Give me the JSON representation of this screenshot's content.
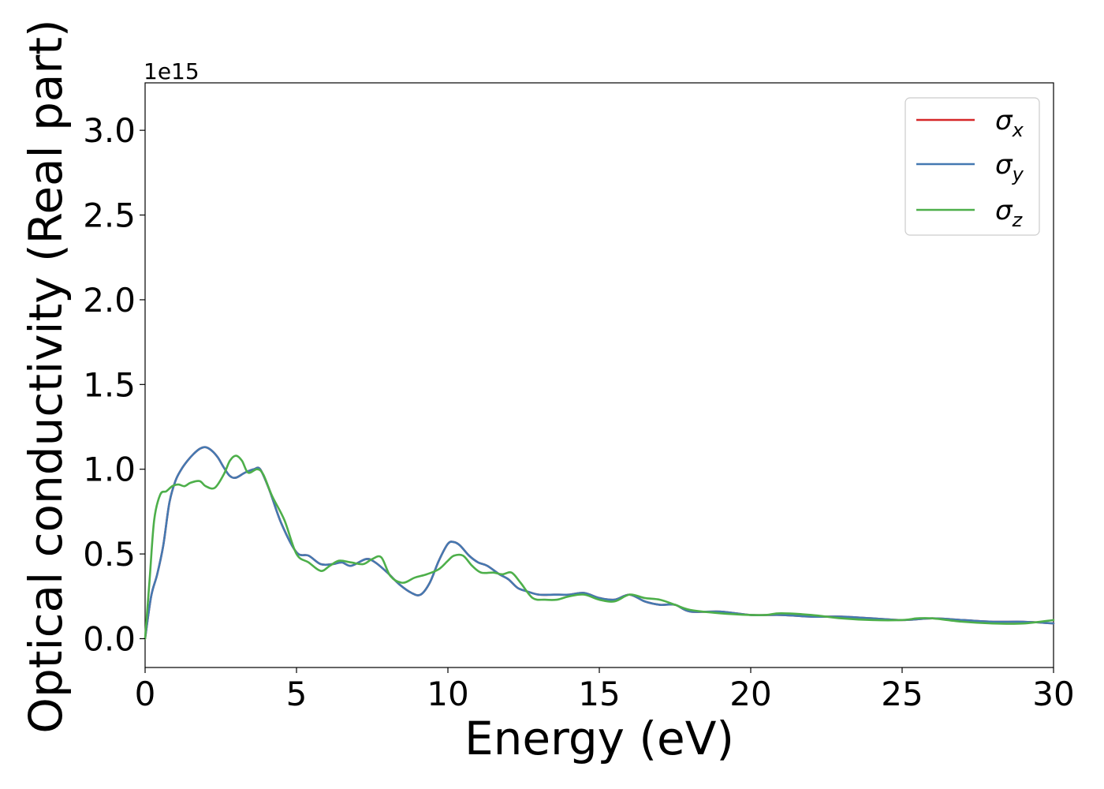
{
  "chart_data": {
    "type": "line",
    "xlabel": "Energy (eV)",
    "ylabel": "Optical conductivity (Real part)",
    "y_offset_label": "1e15",
    "xlim": [
      0,
      30
    ],
    "ylim": [
      -0.17,
      3.28
    ],
    "x_ticks": [
      0,
      5,
      10,
      15,
      20,
      25,
      30
    ],
    "x_tick_labels": [
      "0",
      "5",
      "10",
      "15",
      "20",
      "25",
      "30"
    ],
    "y_ticks": [
      0.0,
      0.5,
      1.0,
      1.5,
      2.0,
      2.5,
      3.0
    ],
    "y_tick_labels": [
      "0.0",
      "0.5",
      "1.0",
      "1.5",
      "2.0",
      "2.5",
      "3.0"
    ],
    "grid": false,
    "legend_position": "top-right",
    "series": [
      {
        "name": "σx",
        "symbol": "σ",
        "subscript": "x",
        "color": "#d62728",
        "x": [
          0,
          0.2,
          0.4,
          0.6,
          0.8,
          1,
          1.2,
          1.4,
          1.6,
          1.8,
          2,
          2.2,
          2.4,
          2.6,
          2.8,
          3,
          3.3,
          3.6,
          3.8,
          4.1,
          4.5,
          5,
          5.4,
          5.8,
          6.2,
          6.5,
          6.8,
          7.3,
          7.6,
          8,
          8.4,
          8.8,
          9.1,
          9.4,
          9.7,
          10,
          10.2,
          10.4,
          10.7,
          11,
          11.3,
          11.7,
          12,
          12.3,
          12.6,
          13,
          13.5,
          14,
          14.5,
          15,
          15.5,
          16,
          16.5,
          17,
          17.5,
          18,
          19,
          20,
          21,
          22,
          23,
          24,
          25,
          26,
          27,
          28,
          29,
          30
        ],
        "y": [
          0,
          0.25,
          0.38,
          0.55,
          0.8,
          0.93,
          1.0,
          1.05,
          1.09,
          1.12,
          1.13,
          1.11,
          1.07,
          1.01,
          0.96,
          0.95,
          0.98,
          1.0,
          1.0,
          0.88,
          0.68,
          0.51,
          0.49,
          0.44,
          0.44,
          0.45,
          0.43,
          0.47,
          0.45,
          0.39,
          0.32,
          0.27,
          0.26,
          0.33,
          0.46,
          0.56,
          0.57,
          0.55,
          0.49,
          0.45,
          0.43,
          0.38,
          0.35,
          0.3,
          0.28,
          0.26,
          0.26,
          0.26,
          0.27,
          0.24,
          0.23,
          0.26,
          0.22,
          0.2,
          0.2,
          0.16,
          0.16,
          0.14,
          0.14,
          0.13,
          0.13,
          0.12,
          0.11,
          0.12,
          0.11,
          0.1,
          0.1,
          0.09
        ]
      },
      {
        "name": "σy",
        "symbol": "σ",
        "subscript": "y",
        "color": "#4479b1",
        "x": [
          0,
          0.2,
          0.4,
          0.6,
          0.8,
          1,
          1.2,
          1.4,
          1.6,
          1.8,
          2,
          2.2,
          2.4,
          2.6,
          2.8,
          3,
          3.3,
          3.6,
          3.8,
          4.1,
          4.5,
          5,
          5.4,
          5.8,
          6.2,
          6.5,
          6.8,
          7.3,
          7.6,
          8,
          8.4,
          8.8,
          9.1,
          9.4,
          9.7,
          10,
          10.2,
          10.4,
          10.7,
          11,
          11.3,
          11.7,
          12,
          12.3,
          12.6,
          13,
          13.5,
          14,
          14.5,
          15,
          15.5,
          16,
          16.5,
          17,
          17.5,
          18,
          19,
          20,
          21,
          22,
          23,
          24,
          25,
          26,
          27,
          28,
          29,
          30
        ],
        "y": [
          0,
          0.25,
          0.38,
          0.55,
          0.8,
          0.93,
          1.0,
          1.05,
          1.09,
          1.12,
          1.13,
          1.11,
          1.07,
          1.01,
          0.96,
          0.95,
          0.98,
          1.0,
          1.0,
          0.88,
          0.68,
          0.51,
          0.49,
          0.44,
          0.44,
          0.45,
          0.43,
          0.47,
          0.45,
          0.39,
          0.32,
          0.27,
          0.26,
          0.33,
          0.46,
          0.56,
          0.57,
          0.55,
          0.49,
          0.45,
          0.43,
          0.38,
          0.35,
          0.3,
          0.28,
          0.26,
          0.26,
          0.26,
          0.27,
          0.24,
          0.23,
          0.26,
          0.22,
          0.2,
          0.2,
          0.16,
          0.16,
          0.14,
          0.14,
          0.13,
          0.13,
          0.12,
          0.11,
          0.12,
          0.11,
          0.1,
          0.1,
          0.09
        ]
      },
      {
        "name": "σz",
        "symbol": "σ",
        "subscript": "z",
        "color": "#4daf4a",
        "x": [
          0,
          0.15,
          0.3,
          0.5,
          0.7,
          0.9,
          1.1,
          1.3,
          1.5,
          1.8,
          2.0,
          2.3,
          2.6,
          2.8,
          3.0,
          3.2,
          3.4,
          3.7,
          3.9,
          4.2,
          4.6,
          5.0,
          5.4,
          5.8,
          6.1,
          6.4,
          6.8,
          7.2,
          7.5,
          7.8,
          8.1,
          8.5,
          8.9,
          9.3,
          9.7,
          10.0,
          10.2,
          10.5,
          10.8,
          11.1,
          11.5,
          11.8,
          12.1,
          12.4,
          12.8,
          13.2,
          13.6,
          14.0,
          14.5,
          15.0,
          15.5,
          16.0,
          16.5,
          17.0,
          17.5,
          18,
          19,
          20,
          20.5,
          21,
          22,
          23,
          24,
          25,
          25.5,
          26,
          27,
          28,
          29,
          30
        ],
        "y": [
          0,
          0.35,
          0.7,
          0.85,
          0.87,
          0.9,
          0.91,
          0.9,
          0.92,
          0.93,
          0.9,
          0.89,
          0.97,
          1.05,
          1.08,
          1.05,
          0.98,
          1.0,
          0.97,
          0.84,
          0.7,
          0.5,
          0.45,
          0.4,
          0.43,
          0.46,
          0.45,
          0.44,
          0.47,
          0.48,
          0.37,
          0.33,
          0.36,
          0.38,
          0.41,
          0.46,
          0.49,
          0.49,
          0.43,
          0.39,
          0.39,
          0.38,
          0.39,
          0.33,
          0.24,
          0.23,
          0.23,
          0.25,
          0.26,
          0.23,
          0.22,
          0.26,
          0.24,
          0.23,
          0.2,
          0.17,
          0.15,
          0.14,
          0.14,
          0.15,
          0.14,
          0.12,
          0.11,
          0.11,
          0.12,
          0.12,
          0.1,
          0.09,
          0.09,
          0.11
        ]
      }
    ]
  }
}
